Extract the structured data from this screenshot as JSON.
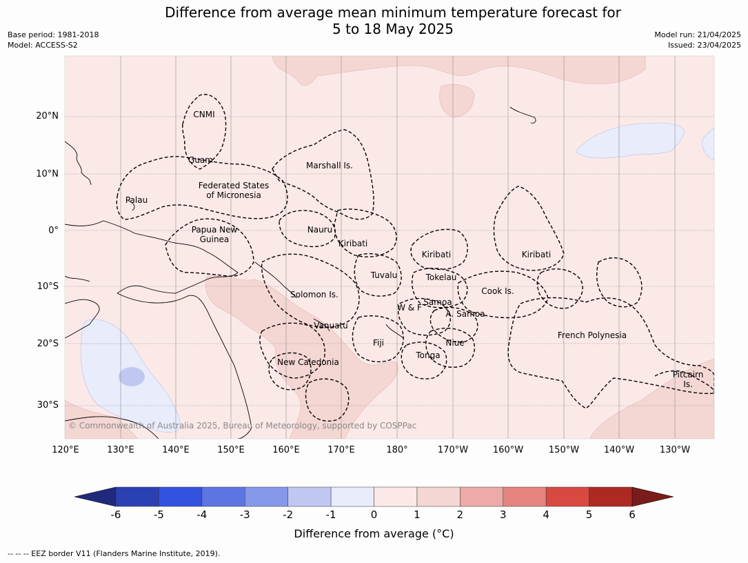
{
  "header": {
    "title_line1": "Difference from average mean minimum temperature forecast for",
    "title_line2": "5 to 18 May 2025",
    "base_period": "Base period: 1981-2018",
    "model": "Model: ACCESS-S2",
    "model_run": "Model run: 21/04/2025",
    "issued": "Issued: 23/04/2025"
  },
  "map": {
    "lat_labels": [
      "20°N",
      "10°N",
      "0°",
      "10°S",
      "20°S",
      "30°S"
    ],
    "lon_labels": [
      "120°E",
      "130°E",
      "140°E",
      "150°E",
      "160°E",
      "170°E",
      "180°",
      "170°W",
      "160°W",
      "150°W",
      "140°W",
      "130°W"
    ],
    "regions": [
      {
        "id": "cnmi",
        "label": "CNMI"
      },
      {
        "id": "guam",
        "label": "Guam"
      },
      {
        "id": "palau",
        "label": "Palau"
      },
      {
        "id": "fsm",
        "label": "Federated States\nof Micronesia"
      },
      {
        "id": "marshall",
        "label": "Marshall Is."
      },
      {
        "id": "png",
        "label": "Papua New\nGuinea"
      },
      {
        "id": "nauru",
        "label": "Nauru"
      },
      {
        "id": "kiribati-w",
        "label": "Kiribati"
      },
      {
        "id": "kiribati-c",
        "label": "Kiribati"
      },
      {
        "id": "kiribati-e",
        "label": "Kiribati"
      },
      {
        "id": "tuvalu",
        "label": "Tuvalu"
      },
      {
        "id": "tokelau",
        "label": "Tokelau"
      },
      {
        "id": "cook",
        "label": "Cook Is."
      },
      {
        "id": "solomon",
        "label": "Solomon Is."
      },
      {
        "id": "samoa",
        "label": "Samoa"
      },
      {
        "id": "wf",
        "label": "W & F"
      },
      {
        "id": "asamoa",
        "label": "A. Samoa"
      },
      {
        "id": "vanuatu",
        "label": "Vanuatu"
      },
      {
        "id": "fiji",
        "label": "Fiji"
      },
      {
        "id": "niue",
        "label": "Niue"
      },
      {
        "id": "tonga",
        "label": "Tonga"
      },
      {
        "id": "frpoly",
        "label": "French Polynesia"
      },
      {
        "id": "newcal",
        "label": "New Caledonia"
      },
      {
        "id": "pitcairn",
        "label": "Pitcairn\nIs."
      }
    ],
    "copyright": "© Commonwealth of Australia 2025, Bureau of Meteorology, supported by COSPPac",
    "colors": {
      "bin_0_1": "#fbe9e8",
      "bin_1_2": "#f4d6d3",
      "bin_m1_0": "#e8ecfb",
      "bin_m2_m1": "#c0c8f2"
    }
  },
  "colorbar": {
    "ticks": [
      "-6",
      "-5",
      "-4",
      "-3",
      "-2",
      "-1",
      "0",
      "1",
      "2",
      "3",
      "4",
      "5",
      "6"
    ],
    "colors": [
      "#1f2a7d",
      "#2a40b3",
      "#3352de",
      "#5d74e3",
      "#8698ea",
      "#c0c8f2",
      "#e8ecfb",
      "#fbe9e8",
      "#f4d6d3",
      "#edaaa6",
      "#e5837e",
      "#d84a41",
      "#ad2a22",
      "#7a1d1a"
    ],
    "label": "Difference from average (°C)"
  },
  "footnote": "--  --  -- EEZ border V11 (Flanders Marine Institute, 2019)."
}
